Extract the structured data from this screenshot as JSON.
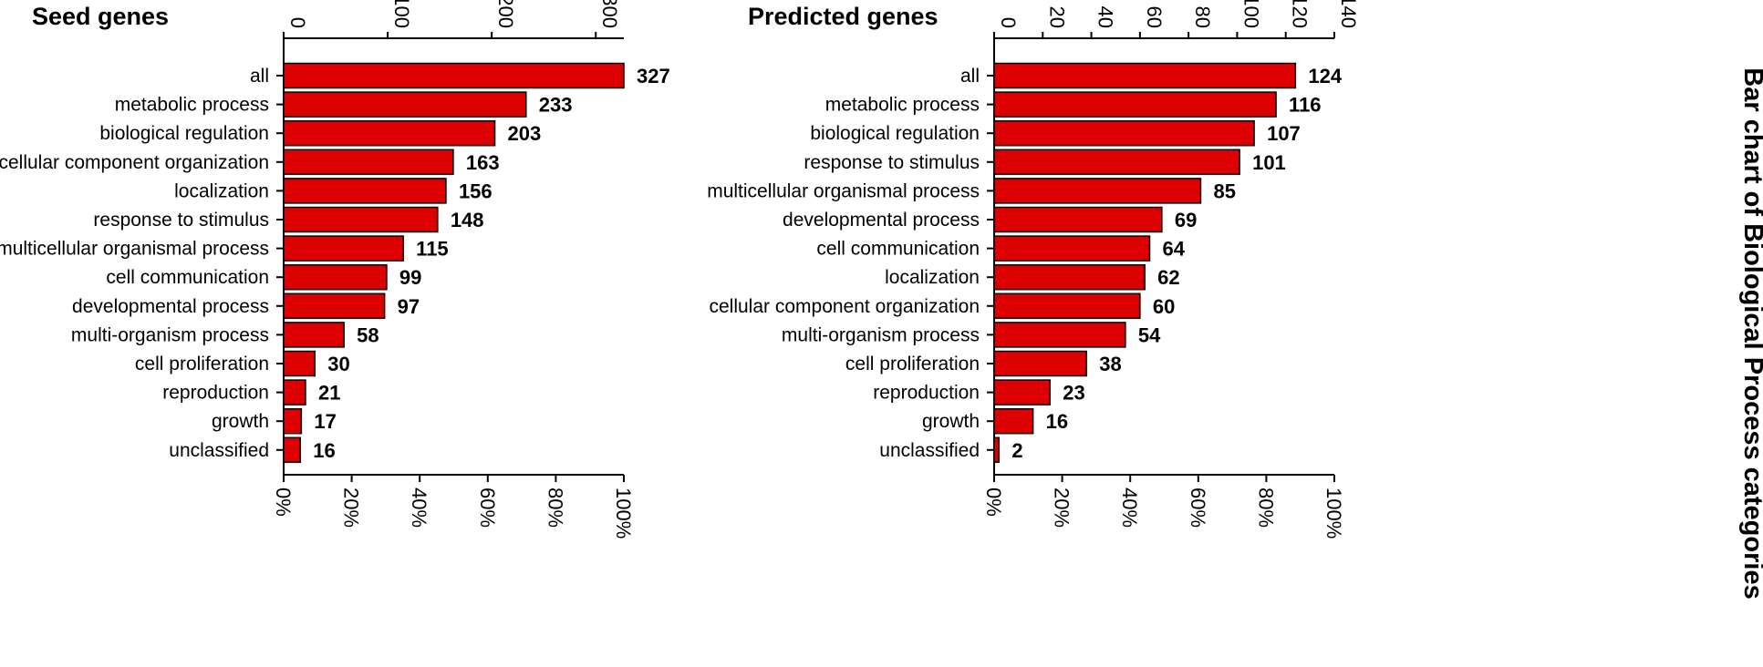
{
  "bar_color": "#dd0000",
  "side_title": "Bar chart of Biological Process categories",
  "chart_data": [
    {
      "type": "bar",
      "orientation": "horizontal",
      "title": "Seed genes",
      "categories": [
        "all",
        "metabolic process",
        "biological regulation",
        "cellular component organization",
        "localization",
        "response to stimulus",
        "multicellular organismal process",
        "cell communication",
        "developmental process",
        "multi-organism process",
        "cell proliferation",
        "reproduction",
        "growth",
        "unclassified"
      ],
      "values": [
        327,
        233,
        203,
        163,
        156,
        148,
        115,
        99,
        97,
        58,
        30,
        21,
        17,
        16
      ],
      "count_axis": {
        "range": [
          0,
          327
        ],
        "ticks": [
          0,
          100,
          200,
          300
        ],
        "position": "top"
      },
      "percent_axis": {
        "range": [
          0,
          100
        ],
        "ticks": [
          "0%",
          "20%",
          "40%",
          "60%",
          "80%",
          "100%"
        ],
        "position": "bottom"
      }
    },
    {
      "type": "bar",
      "orientation": "horizontal",
      "title": "Predicted genes",
      "categories": [
        "all",
        "metabolic process",
        "biological regulation",
        "response to stimulus",
        "multicellular organismal process",
        "developmental process",
        "cell communication",
        "localization",
        "cellular component organization",
        "multi-organism process",
        "cell proliferation",
        "reproduction",
        "growth",
        "unclassified"
      ],
      "values": [
        124,
        116,
        107,
        101,
        85,
        69,
        64,
        62,
        60,
        54,
        38,
        23,
        16,
        2
      ],
      "count_axis": {
        "range": [
          0,
          140
        ],
        "ticks": [
          0,
          20,
          40,
          60,
          80,
          100,
          120,
          140
        ],
        "position": "top"
      },
      "percent_axis": {
        "range": [
          0,
          100
        ],
        "ticks": [
          "0%",
          "20%",
          "40%",
          "60%",
          "80%",
          "100%"
        ],
        "position": "bottom"
      }
    }
  ]
}
